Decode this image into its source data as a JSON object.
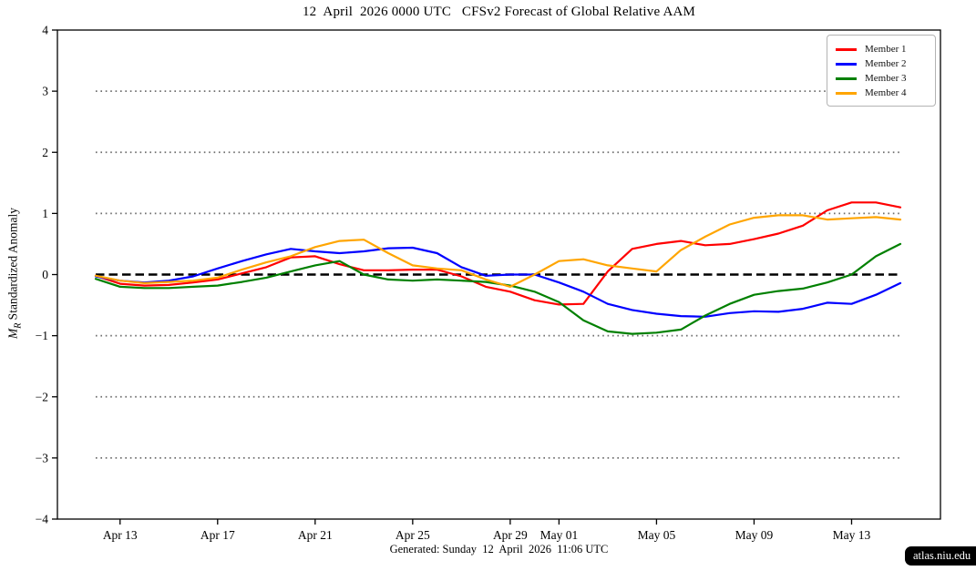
{
  "figure": {
    "title": "12  April  2026 0000 UTC   CFSv2 Forecast of Global Relative AAM",
    "footer": "Generated: Sunday  12  April  2026  11:06 UTC",
    "badge": "atlas.niu.edu",
    "ylabel_var": "M",
    "ylabel_sub": "R",
    "ylabel_rest": " Standardized Anomaly"
  },
  "chart_data": {
    "type": "line",
    "title": "12  April  2026 0000 UTC   CFSv2 Forecast of Global Relative AAM",
    "xlabel": "",
    "ylabel": "M_R Standardized Anomaly",
    "ylim": [
      -4,
      4
    ],
    "grid": "horizontal-dotted",
    "grid_values": [
      3,
      2,
      1,
      -1,
      -2,
      -3
    ],
    "zero_line_value": 0,
    "legend_position": "top-right",
    "colors": {
      "member1": "#ff0000",
      "member2": "#0000ff",
      "member3": "#008000",
      "member4": "#ffa500",
      "gridline": "#6e6e6e",
      "zero_line": "#000000"
    },
    "yticks": [
      {
        "label": "4",
        "value": 4
      },
      {
        "label": "3",
        "value": 3
      },
      {
        "label": "2",
        "value": 2
      },
      {
        "label": "1",
        "value": 1
      },
      {
        "label": "0",
        "value": 0
      },
      {
        "label": "−1",
        "value": -1
      },
      {
        "label": "−2",
        "value": -2
      },
      {
        "label": "−3",
        "value": -3
      },
      {
        "label": "−4",
        "value": -4
      }
    ],
    "xticks": [
      {
        "label": "Apr 13",
        "index": 1
      },
      {
        "label": "Apr 17",
        "index": 5
      },
      {
        "label": "Apr 21",
        "index": 9
      },
      {
        "label": "Apr 25",
        "index": 13
      },
      {
        "label": "Apr 29",
        "index": 17
      },
      {
        "label": "May 01",
        "index": 19
      },
      {
        "label": "May 05",
        "index": 23
      },
      {
        "label": "May 09",
        "index": 27
      },
      {
        "label": "May 13",
        "index": 31
      }
    ],
    "x_labels": [
      "Apr 12",
      "Apr 13",
      "Apr 14",
      "Apr 15",
      "Apr 16",
      "Apr 17",
      "Apr 18",
      "Apr 19",
      "Apr 20",
      "Apr 21",
      "Apr 22",
      "Apr 23",
      "Apr 24",
      "Apr 25",
      "Apr 26",
      "Apr 27",
      "Apr 28",
      "Apr 29",
      "Apr 30",
      "May 01",
      "May 02",
      "May 03",
      "May 04",
      "May 05",
      "May 06",
      "May 07",
      "May 08",
      "May 09",
      "May 10",
      "May 11",
      "May 12",
      "May 13",
      "May 14",
      "May 15"
    ],
    "series": [
      {
        "name": "Member 1",
        "color": "#ff0000",
        "values": [
          -0.02,
          -0.15,
          -0.18,
          -0.17,
          -0.13,
          -0.08,
          0.02,
          0.12,
          0.28,
          0.3,
          0.17,
          0.07,
          0.07,
          0.08,
          0.08,
          -0.03,
          -0.2,
          -0.28,
          -0.42,
          -0.49,
          -0.48,
          0.05,
          0.42,
          0.5,
          0.55,
          0.48,
          0.5,
          0.58,
          0.67,
          0.8,
          1.05,
          1.18,
          1.18,
          1.1
        ]
      },
      {
        "name": "Member 2",
        "color": "#0000ff",
        "values": [
          -0.03,
          -0.1,
          -0.13,
          -0.1,
          -0.03,
          0.1,
          0.22,
          0.33,
          0.42,
          0.38,
          0.35,
          0.38,
          0.43,
          0.44,
          0.35,
          0.12,
          -0.02,
          0.0,
          0.0,
          -0.13,
          -0.28,
          -0.48,
          -0.58,
          -0.64,
          -0.68,
          -0.69,
          -0.63,
          -0.6,
          -0.61,
          -0.56,
          -0.46,
          -0.48,
          -0.33,
          -0.14
        ]
      },
      {
        "name": "Member 3",
        "color": "#008000",
        "values": [
          -0.07,
          -0.2,
          -0.22,
          -0.22,
          -0.2,
          -0.18,
          -0.12,
          -0.05,
          0.05,
          0.15,
          0.22,
          0.0,
          -0.08,
          -0.1,
          -0.08,
          -0.1,
          -0.12,
          -0.18,
          -0.28,
          -0.45,
          -0.75,
          -0.93,
          -0.97,
          -0.95,
          -0.9,
          -0.67,
          -0.48,
          -0.33,
          -0.27,
          -0.23,
          -0.13,
          0.0,
          0.3,
          0.5
        ]
      },
      {
        "name": "Member 4",
        "color": "#ffa500",
        "values": [
          -0.02,
          -0.1,
          -0.14,
          -0.12,
          -0.1,
          -0.05,
          0.08,
          0.2,
          0.3,
          0.45,
          0.55,
          0.57,
          0.35,
          0.15,
          0.1,
          0.07,
          -0.08,
          -0.2,
          0.0,
          0.22,
          0.25,
          0.15,
          0.1,
          0.05,
          0.4,
          0.62,
          0.82,
          0.93,
          0.97,
          0.97,
          0.9,
          0.92,
          0.94,
          0.9
        ]
      }
    ]
  }
}
